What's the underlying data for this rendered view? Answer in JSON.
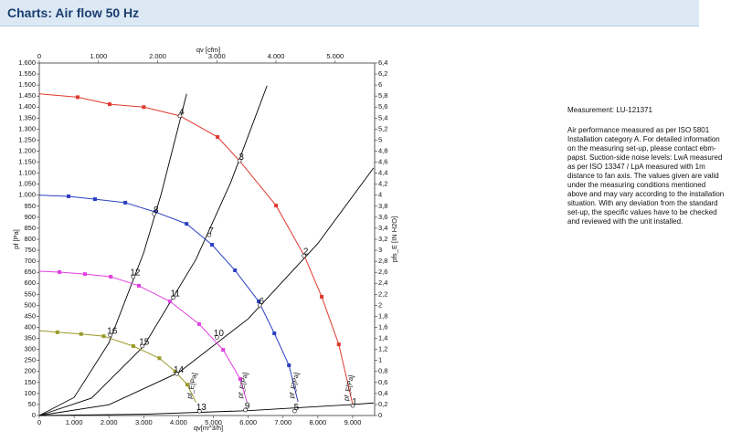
{
  "header": {
    "title": "Charts: Air flow 50 Hz"
  },
  "notes": {
    "measurement": "Measurement: LU-121371",
    "text": "Air performance measured as per ISO 5801 Installation category A. For detailed information on the measuring set-up, please contact ebm-papst. Suction-side noise levels: LwA measured as per ISO 13347 / LpA measured with 1m distance to fan axis. The values given are valid under the measuring conditions mentioned above and may vary according to the installation situation. With any deviation from the standard set-up, the specific values have to be checked and reviewed with the unit installed."
  },
  "chart_data": {
    "type": "line",
    "xlabel": "qv[m^3/h]",
    "x2label": "qv [cfm]",
    "ylabel": "pf [Pa]",
    "y2label": "pfs_E [IN H2O]",
    "xlim": [
      0,
      9630
    ],
    "ylim": [
      0,
      1600
    ],
    "x2lim": [
      0,
      5668
    ],
    "y2lim": [
      0,
      6.4
    ],
    "xticks": [
      0,
      {
        "value": 1000,
        "label": "1.000"
      },
      {
        "value": 2000,
        "label": "2.000"
      },
      {
        "value": 3000,
        "label": "3.000"
      },
      {
        "value": 4000,
        "label": "4.000"
      },
      {
        "value": 5000,
        "label": "5.000"
      },
      {
        "value": 6000,
        "label": "6.000"
      },
      {
        "value": 7000,
        "label": "7.000"
      },
      {
        "value": 8000,
        "label": "8.000"
      },
      {
        "value": 9000,
        "label": "9.000"
      }
    ],
    "x2ticks": [
      0,
      {
        "value": 1000,
        "label": "1.000"
      },
      {
        "value": 2000,
        "label": "2.000"
      },
      {
        "value": 3000,
        "label": "3.000"
      },
      {
        "value": 4000,
        "label": "4.000"
      },
      {
        "value": 5000,
        "label": "5.000"
      }
    ],
    "yticks": [
      0,
      50,
      100,
      150,
      200,
      250,
      300,
      350,
      400,
      450,
      500,
      550,
      600,
      650,
      700,
      750,
      800,
      850,
      900,
      950,
      {
        "value": 1000,
        "label": "1.000"
      },
      {
        "value": 1050,
        "label": "1.050"
      },
      {
        "value": 1100,
        "label": "1.100"
      },
      {
        "value": 1150,
        "label": "1.150"
      },
      {
        "value": 1200,
        "label": "1.200"
      },
      {
        "value": 1250,
        "label": "1.250"
      },
      {
        "value": 1300,
        "label": "1.300"
      },
      {
        "value": 1350,
        "label": "1.350"
      },
      {
        "value": 1400,
        "label": "1.400"
      },
      {
        "value": 1450,
        "label": "1.450"
      },
      {
        "value": 1500,
        "label": "1.500"
      },
      {
        "value": 1550,
        "label": "1.550"
      },
      {
        "value": 1600,
        "label": "1.600"
      }
    ],
    "y2ticks": [
      0,
      {
        "value": 0.2,
        "label": "0,2"
      },
      {
        "value": 0.4,
        "label": "0,4"
      },
      {
        "value": 0.6,
        "label": "0,6"
      },
      {
        "value": 0.8,
        "label": "0,8"
      },
      1,
      {
        "value": 1.2,
        "label": "1,2"
      },
      {
        "value": 1.4,
        "label": "1,4"
      },
      {
        "value": 1.6,
        "label": "1,6"
      },
      {
        "value": 1.8,
        "label": "1,8"
      },
      2,
      {
        "value": 2.2,
        "label": "2,2"
      },
      {
        "value": 2.4,
        "label": "2,4"
      },
      {
        "value": 2.6,
        "label": "2,6"
      },
      {
        "value": 2.8,
        "label": "2,8"
      },
      3,
      {
        "value": 3.2,
        "label": "3,2"
      },
      {
        "value": 3.4,
        "label": "3,4"
      },
      {
        "value": 3.6,
        "label": "3,6"
      },
      {
        "value": 3.8,
        "label": "3,8"
      },
      4,
      {
        "value": 4.2,
        "label": "4,2"
      },
      {
        "value": 4.4,
        "label": "4,4"
      },
      {
        "value": 4.6,
        "label": "4,6"
      },
      {
        "value": 4.8,
        "label": "4,8"
      },
      5,
      {
        "value": 5.2,
        "label": "5,2"
      },
      {
        "value": 5.4,
        "label": "5,4"
      },
      {
        "value": 5.6,
        "label": "5,6"
      },
      {
        "value": 5.8,
        "label": "5,8"
      },
      6,
      {
        "value": 6.2,
        "label": "6,2"
      },
      {
        "value": 6.4,
        "label": "6,4"
      }
    ],
    "series": [
      {
        "name": "pf_E[Pa]",
        "color": "#e0392e",
        "x": [
          0,
          1100,
          2020,
          3000,
          4040,
          5120,
          5750,
          6800,
          7610,
          8110,
          8600,
          9000
        ],
        "values": [
          1460,
          1445,
          1413,
          1400,
          1360,
          1264,
          1156,
          953,
          725,
          539,
          323,
          50
        ]
      },
      {
        "name": "pf_E[Pa]",
        "color": "#2b3fc4",
        "x": [
          0,
          840,
          1600,
          2470,
          3330,
          4230,
          4960,
          5620,
          6300,
          6750,
          7170,
          7430
        ],
        "values": [
          1000,
          995,
          982,
          966,
          924,
          870,
          775,
          659,
          518,
          373,
          228,
          62
        ]
      },
      {
        "name": "pf_E[Pa]",
        "color": "#e040e0",
        "x": [
          0,
          580,
          1310,
          2050,
          2860,
          3750,
          4590,
          5280,
          5770,
          5960
        ],
        "values": [
          655,
          651,
          642,
          630,
          589,
          518,
          415,
          298,
          166,
          62
        ]
      },
      {
        "name": "pf_E[Pa]",
        "color": "#9a9a2a",
        "x": [
          0,
          520,
          1200,
          1850,
          2700,
          3450,
          3900,
          4250,
          4500
        ],
        "values": [
          385,
          378,
          370,
          360,
          315,
          260,
          200,
          140,
          60
        ]
      }
    ],
    "system_curves": [
      {
        "color": "#000000",
        "x": [
          0,
          1000,
          2000,
          3000,
          3500,
          4000,
          4230
        ],
        "values": [
          0,
          82,
          330,
          740,
          1005,
          1315,
          1460
        ]
      },
      {
        "color": "#000000",
        "x": [
          0,
          1500,
          3000,
          4500,
          5500,
          6540
        ],
        "values": [
          0,
          79,
          315,
          709,
          1059,
          1497
        ]
      },
      {
        "color": "#000000",
        "x": [
          0,
          2000,
          4000,
          6000,
          8000,
          9600
        ],
        "values": [
          0,
          49,
          195,
          439,
          781,
          1124
        ]
      },
      {
        "color": "#000000",
        "x": [
          0,
          3000,
          6000,
          9000,
          9600
        ],
        "values": [
          0,
          6,
          22,
          50,
          57
        ]
      }
    ],
    "operating_points": [
      {
        "label": "1",
        "x": 9000,
        "y": 45
      },
      {
        "label": "2",
        "x": 7600,
        "y": 725
      },
      {
        "label": "3",
        "x": 5750,
        "y": 1156
      },
      {
        "label": "4",
        "x": 4040,
        "y": 1360
      },
      {
        "label": "5",
        "x": 7330,
        "y": 20
      },
      {
        "label": "6",
        "x": 6330,
        "y": 500
      },
      {
        "label": "7",
        "x": 4880,
        "y": 820
      },
      {
        "label": "8",
        "x": 3300,
        "y": 915
      },
      {
        "label": "9",
        "x": 5920,
        "y": 25
      },
      {
        "label": "10",
        "x": 5100,
        "y": 355
      },
      {
        "label": "11",
        "x": 3850,
        "y": 535
      },
      {
        "label": "12",
        "x": 2700,
        "y": 630
      },
      {
        "label": "13",
        "x": 4600,
        "y": 20
      },
      {
        "label": "14",
        "x": 3950,
        "y": 190
      },
      {
        "label": "15",
        "x": 2960,
        "y": 315
      },
      {
        "label": "16",
        "x": 2040,
        "y": 365
      }
    ]
  }
}
